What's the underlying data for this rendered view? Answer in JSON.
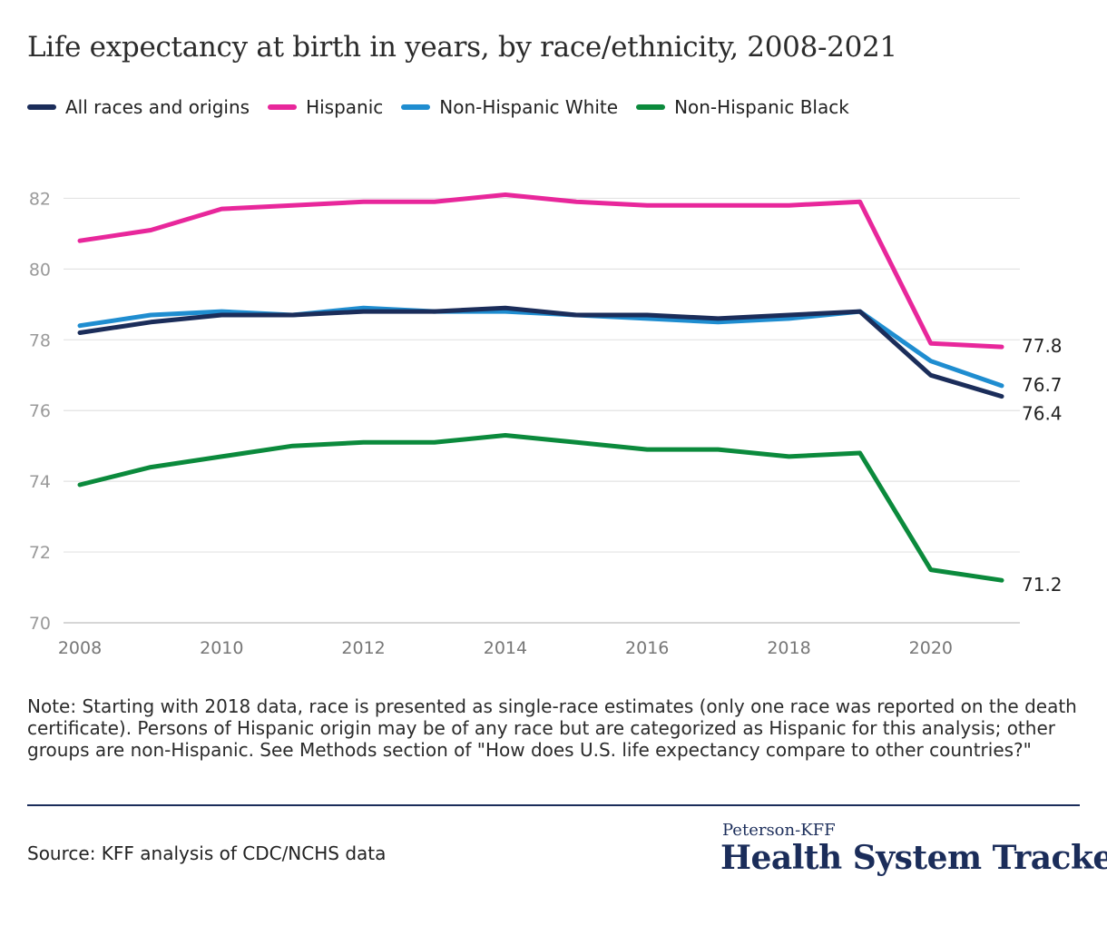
{
  "header": {
    "title": "Life expectancy at birth in years, by race/ethnicity, 2008-2021"
  },
  "note": "Note: Starting with 2018 data, race is presented as single-race estimates (only one race was reported on the death certificate). Persons of Hispanic origin may be of any race but are categorized as Hispanic for this analysis; other groups are non-Hispanic. See Methods section of \"How does U.S. life expectancy compare to other countries?\"",
  "footer": {
    "source": "Source: KFF analysis of CDC/NCHS data",
    "brand_sub": "Peterson-KFF",
    "brand_main": "Health System Tracker"
  },
  "chart_data": {
    "type": "line",
    "title": "Life expectancy at birth in years, by race/ethnicity, 2008-2021",
    "xlabel": "",
    "ylabel": "",
    "x": [
      2008,
      2009,
      2010,
      2011,
      2012,
      2013,
      2014,
      2015,
      2016,
      2017,
      2018,
      2019,
      2020,
      2021
    ],
    "x_tick_labels": [
      "2008",
      "2010",
      "2012",
      "2014",
      "2016",
      "2018",
      "2020"
    ],
    "y_tick_labels": [
      "70",
      "72",
      "74",
      "76",
      "78",
      "80",
      "82"
    ],
    "ylim": [
      70,
      83.5
    ],
    "xlim": [
      2008,
      2021
    ],
    "grid": "horizontal",
    "legend_position": "top-left",
    "series": [
      {
        "name": "All races and origins",
        "color": "#1b2d5a",
        "values": [
          78.2,
          78.5,
          78.7,
          78.7,
          78.8,
          78.8,
          78.9,
          78.7,
          78.7,
          78.6,
          78.7,
          78.8,
          77.0,
          76.4
        ],
        "end_label": "76.4"
      },
      {
        "name": "Hispanic",
        "color": "#e8279b",
        "values": [
          80.8,
          81.1,
          81.7,
          81.8,
          81.9,
          81.9,
          82.1,
          81.9,
          81.8,
          81.8,
          81.8,
          81.9,
          77.9,
          77.8
        ],
        "end_label": "77.8"
      },
      {
        "name": "Non-Hispanic White",
        "color": "#1f8dd0",
        "values": [
          78.4,
          78.7,
          78.8,
          78.7,
          78.9,
          78.8,
          78.8,
          78.7,
          78.6,
          78.5,
          78.6,
          78.8,
          77.4,
          76.7
        ],
        "end_label": "76.7"
      },
      {
        "name": "Non-Hispanic Black",
        "color": "#0b8a3c",
        "values": [
          73.9,
          74.4,
          74.7,
          75.0,
          75.1,
          75.1,
          75.3,
          75.1,
          74.9,
          74.9,
          74.7,
          74.8,
          71.5,
          71.2
        ],
        "end_label": "71.2"
      }
    ]
  }
}
